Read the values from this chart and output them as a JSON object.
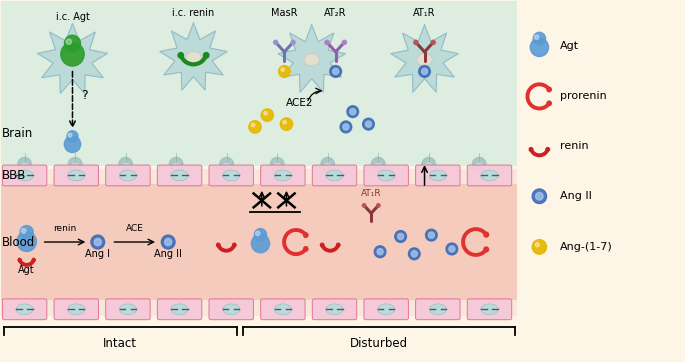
{
  "bg_color": "#fdf5e6",
  "brain_bg": "#ddeedd",
  "bbb_top_cell_color": "#d0e8e8",
  "bbb_cell_face": "#f5c8d8",
  "bbb_cell_edge": "#e07090",
  "blood_bg": "#f5c8b8",
  "brain_label": "Brain",
  "bbb_label": "BBB",
  "blood_label": "Blood",
  "intact_label": "Intact",
  "disturbed_label": "Disturbed",
  "neuron_color": "#b8d8d8",
  "neuron_outline": "#90b8c0",
  "nucleus_color": "#e8e0d0",
  "agt_blue": "#5b9bd5",
  "prorenin_red": "#e03030",
  "renin_red": "#cc2020",
  "angII_blue": "#3b6ab5",
  "ang17_yellow": "#e6b800",
  "masr_color": "#8878b8",
  "at2r_color": "#9878c8",
  "at1r_brain_color": "#883838",
  "at1r_blood_color": "#883838",
  "green_agt": "#2a9d2a",
  "green_renin": "#1a8a1a",
  "ace2_arrow_color": "#333333"
}
